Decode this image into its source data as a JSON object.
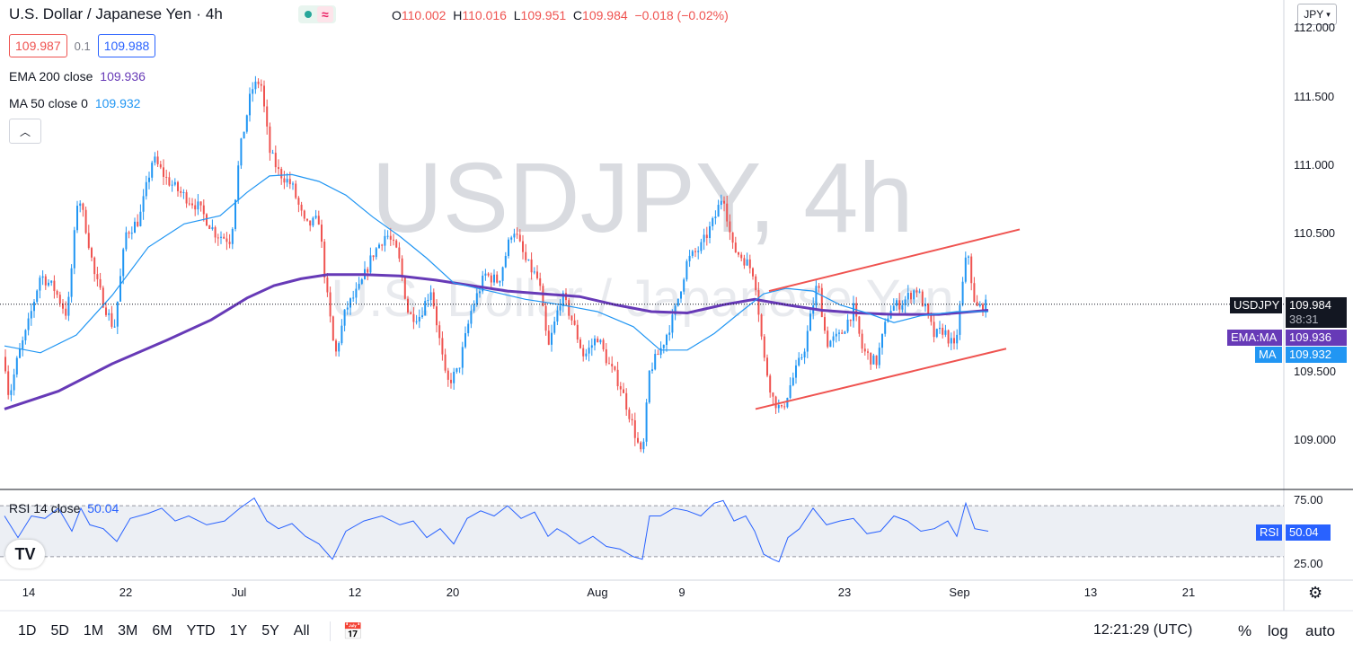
{
  "header": {
    "title": "U.S. Dollar / Japanese Yen",
    "separator": "·",
    "interval": "4h",
    "wave_icon_glyph": "≈",
    "ohlc": {
      "o_label": "O",
      "o": "110.002",
      "h_label": "H",
      "h": "110.016",
      "l_label": "L",
      "l": "109.951",
      "c_label": "C",
      "c": "109.984",
      "change": "−0.018 (−0.02%)"
    },
    "bid": "109.987",
    "spread": "0.1",
    "ask": "109.988",
    "currency_button": "JPY"
  },
  "legend": {
    "ema_label": "EMA 200 close",
    "ema_value": "109.936",
    "ma_label": "MA 50 close 0",
    "ma_value": "109.932",
    "rsi_label": "RSI 14 close",
    "rsi_value": "50.04"
  },
  "watermark": {
    "symbol": "USDJPY, 4h",
    "description": "U.S. Dollar / Japanese Yen"
  },
  "price_axis": {
    "ticks": [
      "112.000",
      "111.500",
      "111.000",
      "110.500",
      "109.500",
      "109.000"
    ],
    "symbol_label": "USDJPY",
    "last_price": "109.984",
    "countdown": "38:31",
    "ema_tag": "EMA:MA",
    "ema_price": "109.936",
    "ma_tag": "MA",
    "ma_price": "109.932",
    "rsi_tag": "RSI",
    "rsi_price": "50.04",
    "rsi_ticks": [
      "75.00",
      "25.00"
    ]
  },
  "date_axis": {
    "ticks": [
      "14",
      "22",
      "Jul",
      "12",
      "20",
      "Aug",
      "9",
      "23",
      "Sep",
      "13",
      "21"
    ]
  },
  "bottom_bar": {
    "ranges": [
      "1D",
      "5D",
      "1M",
      "3M",
      "6M",
      "YTD",
      "1Y",
      "5Y",
      "All"
    ],
    "time": "12:21:29 (UTC)",
    "percent": "%",
    "log": "log",
    "auto": "auto"
  },
  "colors": {
    "up": "#2196f3",
    "down": "#ef5350",
    "ema": "#673ab7",
    "ma": "#2196f3",
    "rsi": "#2962ff",
    "trendline": "#ef5350",
    "last_price_label": "#131722",
    "rsi_band": "#eceff4"
  },
  "chart_data": {
    "type": "candlestick",
    "symbol": "USDJPY",
    "interval": "4h",
    "ylim": [
      108.8,
      112.05
    ],
    "rsi_ylim": [
      0,
      100
    ],
    "rsi_bands": [
      70,
      30
    ],
    "x_date_ticks": [
      "14",
      "22",
      "Jul",
      "12",
      "20",
      "Aug",
      "9",
      "23",
      "Sep",
      "13",
      "21"
    ],
    "price_path": [
      [
        0,
        109.6
      ],
      [
        5,
        109.3
      ],
      [
        15,
        109.6
      ],
      [
        25,
        109.8
      ],
      [
        40,
        110.2
      ],
      [
        55,
        110.1
      ],
      [
        70,
        109.9
      ],
      [
        82,
        110.8
      ],
      [
        92,
        110.5
      ],
      [
        100,
        110.2
      ],
      [
        110,
        110.0
      ],
      [
        122,
        109.8
      ],
      [
        135,
        110.5
      ],
      [
        150,
        110.6
      ],
      [
        165,
        111.05
      ],
      [
        180,
        110.9
      ],
      [
        195,
        110.8
      ],
      [
        215,
        110.7
      ],
      [
        235,
        110.5
      ],
      [
        252,
        110.45
      ],
      [
        262,
        111.1
      ],
      [
        275,
        111.55
      ],
      [
        285,
        111.62
      ],
      [
        295,
        111.1
      ],
      [
        305,
        110.95
      ],
      [
        320,
        110.85
      ],
      [
        335,
        110.55
      ],
      [
        350,
        110.6
      ],
      [
        358,
        110.1
      ],
      [
        368,
        109.6
      ],
      [
        380,
        109.95
      ],
      [
        395,
        110.1
      ],
      [
        410,
        110.35
      ],
      [
        425,
        110.5
      ],
      [
        438,
        110.35
      ],
      [
        450,
        109.9
      ],
      [
        462,
        109.9
      ],
      [
        475,
        110.1
      ],
      [
        492,
        109.4
      ],
      [
        505,
        109.5
      ],
      [
        520,
        109.95
      ],
      [
        535,
        110.2
      ],
      [
        550,
        110.15
      ],
      [
        566,
        110.55
      ],
      [
        580,
        110.3
      ],
      [
        595,
        110.15
      ],
      [
        605,
        109.65
      ],
      [
        620,
        110.05
      ],
      [
        630,
        109.9
      ],
      [
        645,
        109.6
      ],
      [
        660,
        109.75
      ],
      [
        672,
        109.55
      ],
      [
        685,
        109.4
      ],
      [
        697,
        109.15
      ],
      [
        710,
        108.85
      ],
      [
        718,
        109.5
      ],
      [
        730,
        109.65
      ],
      [
        745,
        109.9
      ],
      [
        760,
        110.3
      ],
      [
        775,
        110.4
      ],
      [
        790,
        110.6
      ],
      [
        800,
        110.8
      ],
      [
        810,
        110.4
      ],
      [
        825,
        110.3
      ],
      [
        835,
        110.2
      ],
      [
        845,
        109.6
      ],
      [
        855,
        109.3
      ],
      [
        865,
        109.2
      ],
      [
        875,
        109.4
      ],
      [
        890,
        109.65
      ],
      [
        905,
        110.15
      ],
      [
        915,
        109.7
      ],
      [
        930,
        109.75
      ],
      [
        945,
        109.95
      ],
      [
        955,
        109.65
      ],
      [
        970,
        109.55
      ],
      [
        985,
        109.95
      ],
      [
        1000,
        110.0
      ],
      [
        1015,
        110.1
      ],
      [
        1025,
        109.95
      ],
      [
        1035,
        109.75
      ],
      [
        1045,
        109.8
      ],
      [
        1058,
        109.65
      ],
      [
        1065,
        110.05
      ],
      [
        1072,
        110.4
      ],
      [
        1080,
        109.95
      ],
      [
        1095,
        109.98
      ]
    ],
    "ma50_path": [
      [
        0,
        109.68
      ],
      [
        40,
        109.63
      ],
      [
        80,
        109.76
      ],
      [
        120,
        110.05
      ],
      [
        160,
        110.4
      ],
      [
        200,
        110.57
      ],
      [
        240,
        110.63
      ],
      [
        270,
        110.8
      ],
      [
        295,
        110.92
      ],
      [
        320,
        110.93
      ],
      [
        350,
        110.88
      ],
      [
        380,
        110.78
      ],
      [
        410,
        110.62
      ],
      [
        440,
        110.48
      ],
      [
        470,
        110.32
      ],
      [
        500,
        110.14
      ],
      [
        540,
        110.08
      ],
      [
        580,
        110.02
      ],
      [
        620,
        109.98
      ],
      [
        660,
        109.93
      ],
      [
        700,
        109.82
      ],
      [
        730,
        109.65
      ],
      [
        760,
        109.65
      ],
      [
        790,
        109.77
      ],
      [
        820,
        109.93
      ],
      [
        845,
        110.06
      ],
      [
        870,
        110.1
      ],
      [
        900,
        110.08
      ],
      [
        930,
        109.98
      ],
      [
        960,
        109.92
      ],
      [
        990,
        109.85
      ],
      [
        1020,
        109.9
      ],
      [
        1060,
        109.93
      ],
      [
        1095,
        109.93
      ]
    ],
    "ema200_path": [
      [
        0,
        109.22
      ],
      [
        60,
        109.35
      ],
      [
        120,
        109.55
      ],
      [
        180,
        109.72
      ],
      [
        230,
        109.87
      ],
      [
        270,
        110.03
      ],
      [
        300,
        110.12
      ],
      [
        330,
        110.17
      ],
      [
        360,
        110.2
      ],
      [
        400,
        110.2
      ],
      [
        440,
        110.19
      ],
      [
        480,
        110.16
      ],
      [
        520,
        110.12
      ],
      [
        560,
        110.08
      ],
      [
        600,
        110.06
      ],
      [
        640,
        110.04
      ],
      [
        680,
        109.98
      ],
      [
        720,
        109.93
      ],
      [
        760,
        109.92
      ],
      [
        800,
        109.98
      ],
      [
        835,
        110.02
      ],
      [
        870,
        109.98
      ],
      [
        910,
        109.94
      ],
      [
        950,
        109.92
      ],
      [
        990,
        109.91
      ],
      [
        1040,
        109.91
      ],
      [
        1095,
        109.94
      ]
    ],
    "trend_upper": [
      [
        856,
        110.08
      ],
      [
        1135,
        110.53
      ]
    ],
    "trend_lower": [
      [
        841,
        109.22
      ],
      [
        1120,
        109.66
      ]
    ],
    "rsi_path": [
      [
        0,
        62
      ],
      [
        15,
        45
      ],
      [
        30,
        62
      ],
      [
        45,
        60
      ],
      [
        60,
        68
      ],
      [
        75,
        50
      ],
      [
        85,
        68
      ],
      [
        95,
        55
      ],
      [
        110,
        52
      ],
      [
        125,
        42
      ],
      [
        140,
        60
      ],
      [
        160,
        64
      ],
      [
        175,
        68
      ],
      [
        190,
        58
      ],
      [
        205,
        62
      ],
      [
        225,
        55
      ],
      [
        245,
        58
      ],
      [
        262,
        68
      ],
      [
        278,
        76
      ],
      [
        292,
        58
      ],
      [
        305,
        52
      ],
      [
        320,
        56
      ],
      [
        335,
        46
      ],
      [
        350,
        40
      ],
      [
        365,
        28
      ],
      [
        380,
        50
      ],
      [
        400,
        58
      ],
      [
        420,
        62
      ],
      [
        440,
        55
      ],
      [
        455,
        58
      ],
      [
        470,
        45
      ],
      [
        485,
        52
      ],
      [
        500,
        40
      ],
      [
        515,
        60
      ],
      [
        530,
        66
      ],
      [
        545,
        62
      ],
      [
        560,
        70
      ],
      [
        575,
        60
      ],
      [
        590,
        65
      ],
      [
        605,
        46
      ],
      [
        615,
        52
      ],
      [
        625,
        48
      ],
      [
        640,
        40
      ],
      [
        655,
        46
      ],
      [
        670,
        38
      ],
      [
        685,
        36
      ],
      [
        700,
        30
      ],
      [
        710,
        28
      ],
      [
        718,
        62
      ],
      [
        730,
        62
      ],
      [
        745,
        68
      ],
      [
        760,
        66
      ],
      [
        775,
        62
      ],
      [
        790,
        72
      ],
      [
        800,
        74
      ],
      [
        812,
        58
      ],
      [
        825,
        62
      ],
      [
        835,
        50
      ],
      [
        845,
        32
      ],
      [
        855,
        28
      ],
      [
        862,
        26
      ],
      [
        872,
        45
      ],
      [
        885,
        52
      ],
      [
        900,
        68
      ],
      [
        915,
        55
      ],
      [
        930,
        58
      ],
      [
        945,
        60
      ],
      [
        960,
        48
      ],
      [
        975,
        50
      ],
      [
        990,
        62
      ],
      [
        1005,
        58
      ],
      [
        1020,
        50
      ],
      [
        1035,
        52
      ],
      [
        1050,
        58
      ],
      [
        1060,
        46
      ],
      [
        1070,
        72
      ],
      [
        1080,
        52
      ],
      [
        1095,
        50
      ]
    ]
  }
}
